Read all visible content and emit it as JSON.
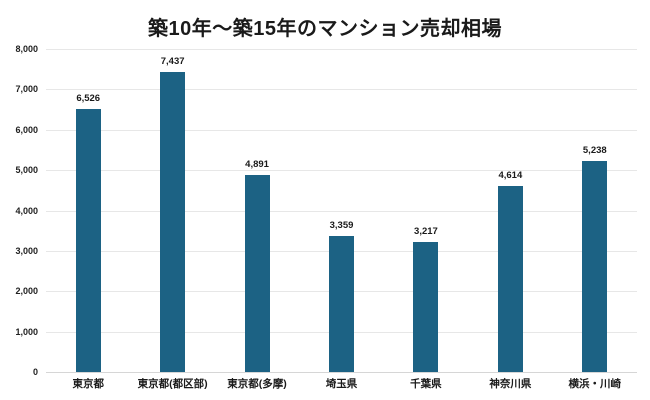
{
  "chart_data": {
    "type": "bar",
    "title": "築10年〜築15年のマンション売却相場",
    "categories": [
      "東京都",
      "東京都(都区部)",
      "東京都(多摩)",
      "埼玉県",
      "千葉県",
      "神奈川県",
      "横浜・川崎"
    ],
    "values": [
      6526,
      7437,
      4891,
      3359,
      3217,
      4614,
      5238
    ],
    "value_labels": [
      "6,526",
      "7,437",
      "4,891",
      "3,359",
      "3,217",
      "4,614",
      "5,238"
    ],
    "xlabel": "",
    "ylabel": "",
    "ylim": [
      0,
      8000
    ],
    "y_tick_step": 1000,
    "y_tick_labels": [
      "0",
      "1,000",
      "2,000",
      "3,000",
      "4,000",
      "5,000",
      "6,000",
      "7,000",
      "8,000"
    ],
    "grid": true,
    "legend_position": "none",
    "bar_color": "#1C6284",
    "gridline_color": "#E7E7E7",
    "background_color": "#FFFFFF",
    "text_color": "#1A1A1A"
  }
}
